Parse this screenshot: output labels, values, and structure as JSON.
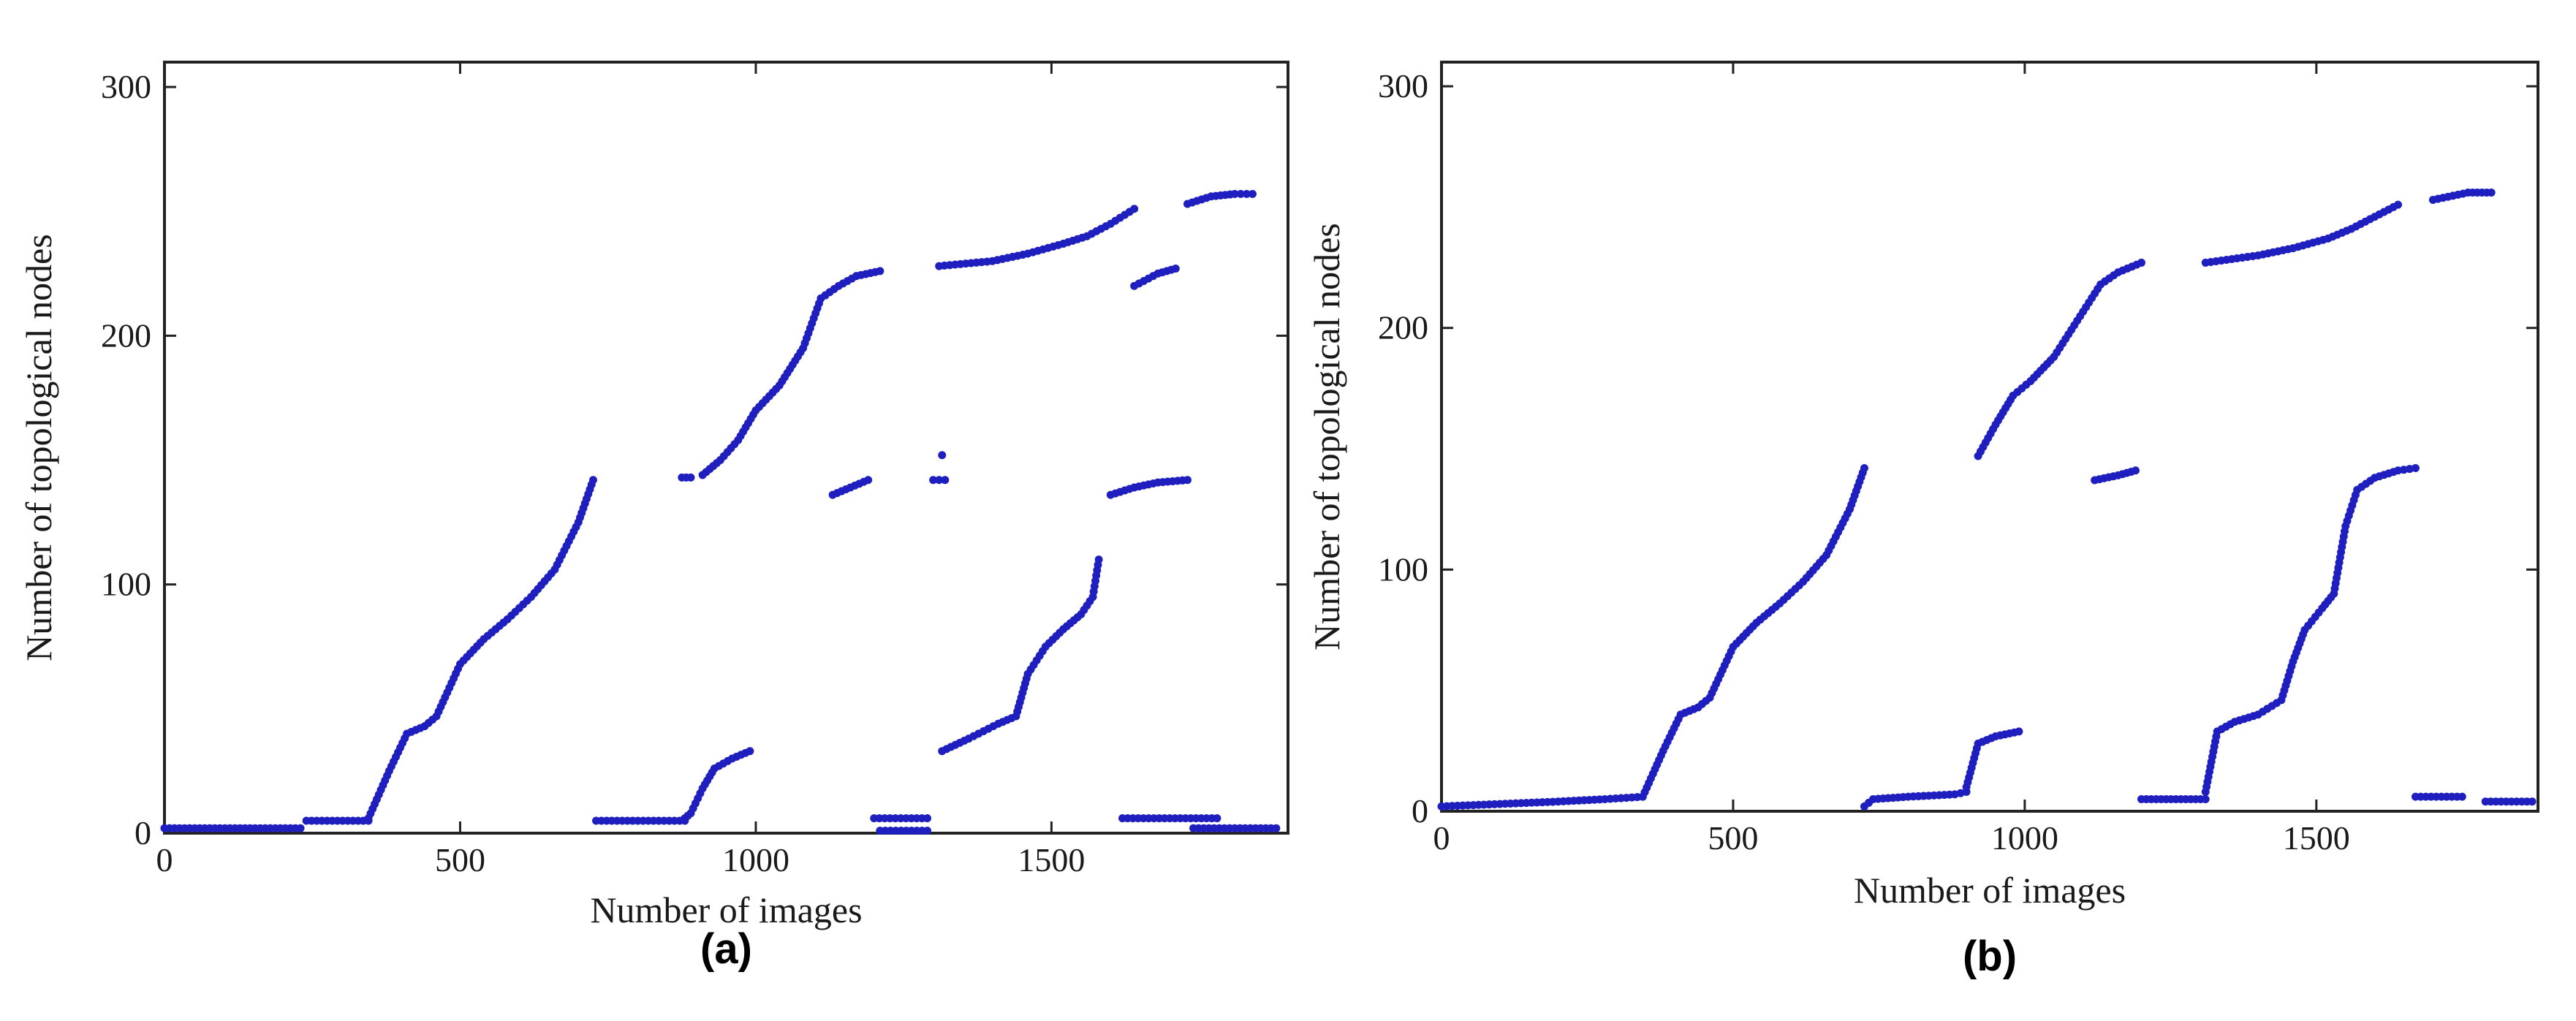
{
  "chart_data": [
    {
      "type": "scatter",
      "panel_label": "(a)",
      "xlabel": "Number of images",
      "ylabel": "Number of topological nodes",
      "xlim": [
        0,
        1900
      ],
      "ylim": [
        0,
        310
      ],
      "xticks": [
        0,
        500,
        1000,
        1500
      ],
      "yticks": [
        0,
        100,
        200,
        300
      ],
      "grid": false,
      "marker_color": "#1f1fbf",
      "segments": [
        {
          "x": [
            0,
            230
          ],
          "y": [
            2,
            2
          ]
        },
        {
          "x": [
            240,
            345
          ],
          "y": [
            5,
            5
          ]
        },
        {
          "x": [
            345,
            380,
            410,
            440,
            460,
            500,
            540,
            580,
            620,
            660,
            700,
            725
          ],
          "y": [
            6,
            25,
            40,
            43,
            47,
            68,
            78,
            86,
            95,
            106,
            125,
            142
          ]
        },
        {
          "x": [
            730,
            880
          ],
          "y": [
            5,
            5
          ]
        },
        {
          "x": [
            880,
            890,
            910,
            930,
            960,
            990
          ],
          "y": [
            6,
            8,
            18,
            26,
            30,
            33
          ]
        },
        {
          "x": [
            875,
            890
          ],
          "y": [
            143,
            143
          ]
        },
        {
          "x": [
            910,
            940,
            970,
            1000,
            1040,
            1080,
            1110,
            1140,
            1170,
            1210
          ],
          "y": [
            144,
            150,
            158,
            170,
            180,
            195,
            215,
            220,
            224,
            226
          ]
        },
        {
          "x": [
            1130,
            1160,
            1190
          ],
          "y": [
            136,
            139,
            142
          ]
        },
        {
          "x": [
            1200,
            1290
          ],
          "y": [
            6,
            6
          ]
        },
        {
          "x": [
            1210,
            1290
          ],
          "y": [
            1,
            1
          ]
        },
        {
          "x": [
            1300,
            1320
          ],
          "y": [
            142,
            142
          ]
        },
        {
          "x": [
            1315
          ],
          "y": [
            152
          ]
        },
        {
          "x": [
            1315,
            1360,
            1410,
            1440,
            1460,
            1490,
            1520,
            1550,
            1570,
            1580
          ],
          "y": [
            33,
            38,
            44,
            47,
            64,
            75,
            82,
            88,
            95,
            110
          ]
        },
        {
          "x": [
            1310,
            1400,
            1460,
            1520,
            1560,
            1600,
            1640
          ],
          "y": [
            228,
            230,
            233,
            237,
            240,
            245,
            251
          ]
        },
        {
          "x": [
            1600,
            1640,
            1680,
            1730
          ],
          "y": [
            136,
            139,
            141,
            142
          ]
        },
        {
          "x": [
            1640,
            1680,
            1710
          ],
          "y": [
            220,
            225,
            227
          ]
        },
        {
          "x": [
            1620,
            1780
          ],
          "y": [
            6,
            6
          ]
        },
        {
          "x": [
            1740,
            1880
          ],
          "y": [
            2,
            2
          ]
        },
        {
          "x": [
            1730,
            1770,
            1810,
            1840
          ],
          "y": [
            253,
            256,
            257,
            257
          ]
        }
      ]
    },
    {
      "type": "scatter",
      "panel_label": "(b)",
      "xlabel": "Number of images",
      "ylabel": "Number of topological nodes",
      "xlim": [
        0,
        1880
      ],
      "ylim": [
        0,
        310
      ],
      "xticks": [
        0,
        500,
        1000,
        1500
      ],
      "yticks": [
        0,
        100,
        200,
        300
      ],
      "grid": false,
      "marker_color": "#1f1fbf",
      "segments": [
        {
          "x": [
            0,
            100,
            200,
            280,
            345
          ],
          "y": [
            2,
            3,
            4,
            5,
            6
          ]
        },
        {
          "x": [
            345,
            380,
            410,
            440,
            460,
            500,
            540,
            580,
            620,
            660,
            700,
            725
          ],
          "y": [
            6,
            25,
            40,
            43,
            47,
            68,
            78,
            86,
            95,
            106,
            125,
            142
          ]
        },
        {
          "x": [
            725,
            740,
            800,
            880,
            900
          ],
          "y": [
            2,
            5,
            6,
            7,
            8
          ]
        },
        {
          "x": [
            900,
            920,
            950,
            990
          ],
          "y": [
            10,
            28,
            31,
            33
          ]
        },
        {
          "x": [
            920,
            950,
            980,
            1010,
            1050,
            1090,
            1130,
            1160,
            1200
          ],
          "y": [
            147,
            160,
            172,
            178,
            188,
            203,
            218,
            223,
            227
          ]
        },
        {
          "x": [
            1120,
            1160,
            1190
          ],
          "y": [
            137,
            139,
            141
          ]
        },
        {
          "x": [
            1200,
            1310
          ],
          "y": [
            5,
            5
          ]
        },
        {
          "x": [
            1310,
            1330,
            1360,
            1400,
            1440,
            1460,
            1480,
            1510,
            1530,
            1550,
            1570,
            1600,
            1640,
            1670
          ],
          "y": [
            8,
            33,
            37,
            40,
            46,
            62,
            75,
            84,
            90,
            118,
            133,
            138,
            141,
            142
          ]
        },
        {
          "x": [
            1310,
            1400,
            1460,
            1520,
            1560,
            1600,
            1640
          ],
          "y": [
            227,
            230,
            233,
            237,
            241,
            246,
            251
          ]
        },
        {
          "x": [
            1700,
            1760,
            1800
          ],
          "y": [
            253,
            256,
            256
          ]
        },
        {
          "x": [
            1670,
            1750
          ],
          "y": [
            6,
            6
          ]
        },
        {
          "x": [
            1790,
            1870
          ],
          "y": [
            4,
            4
          ]
        }
      ]
    }
  ]
}
